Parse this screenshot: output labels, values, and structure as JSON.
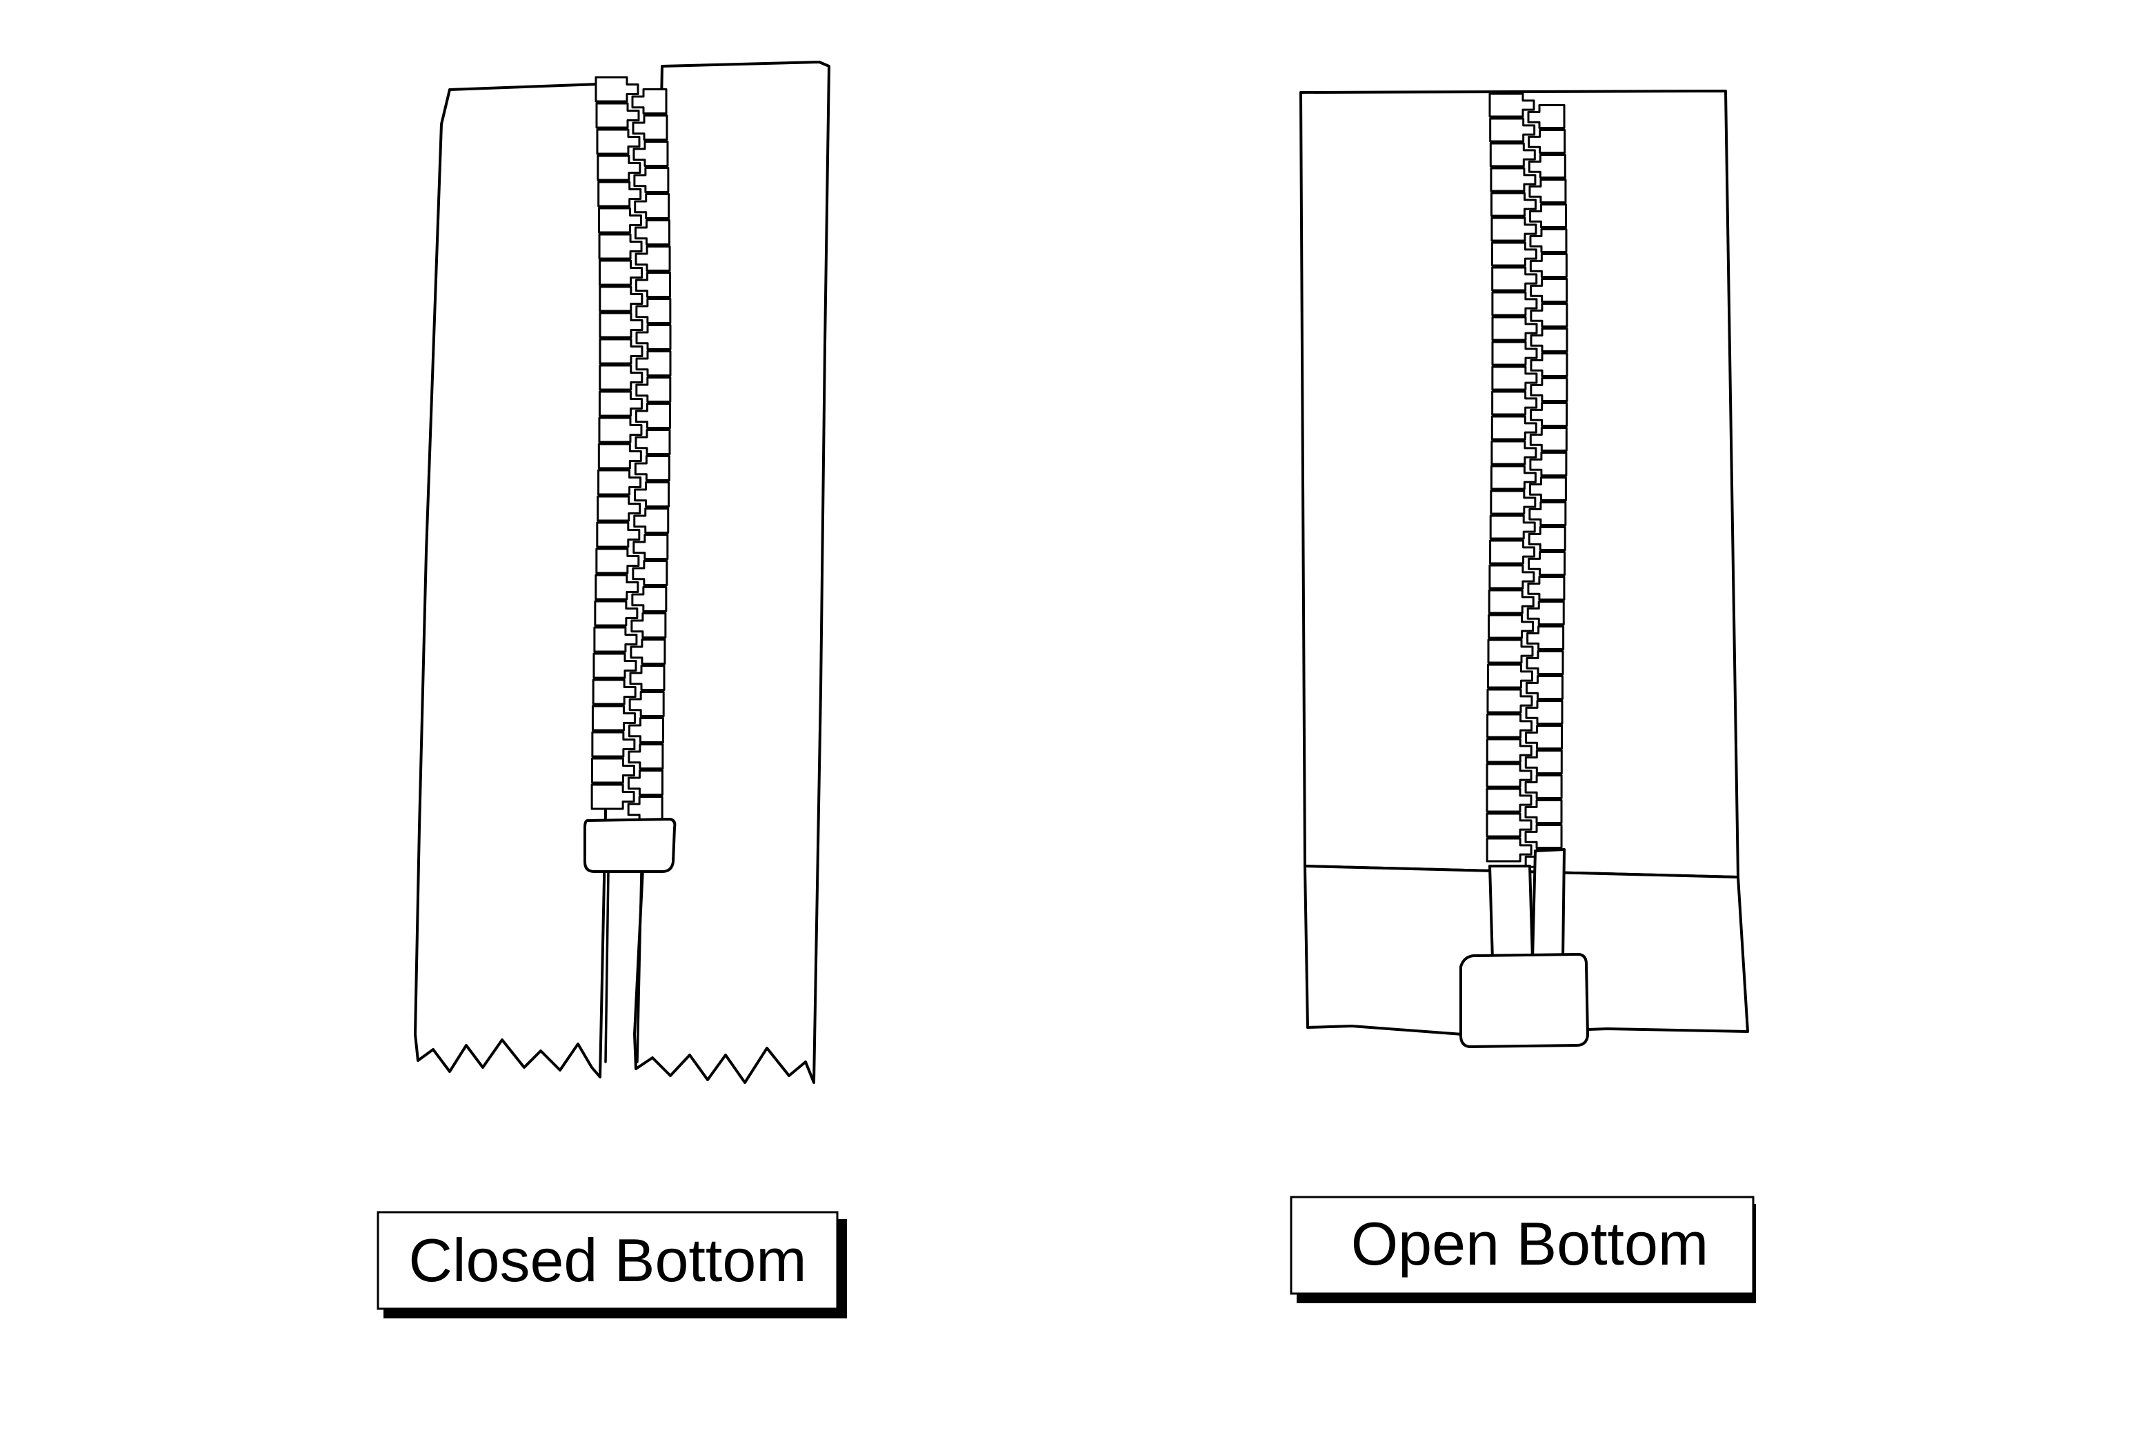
{
  "labels": {
    "closed": "Closed Bottom",
    "open": "Open Bottom"
  },
  "colors": {
    "stroke": "#000000",
    "background": "#ffffff"
  }
}
